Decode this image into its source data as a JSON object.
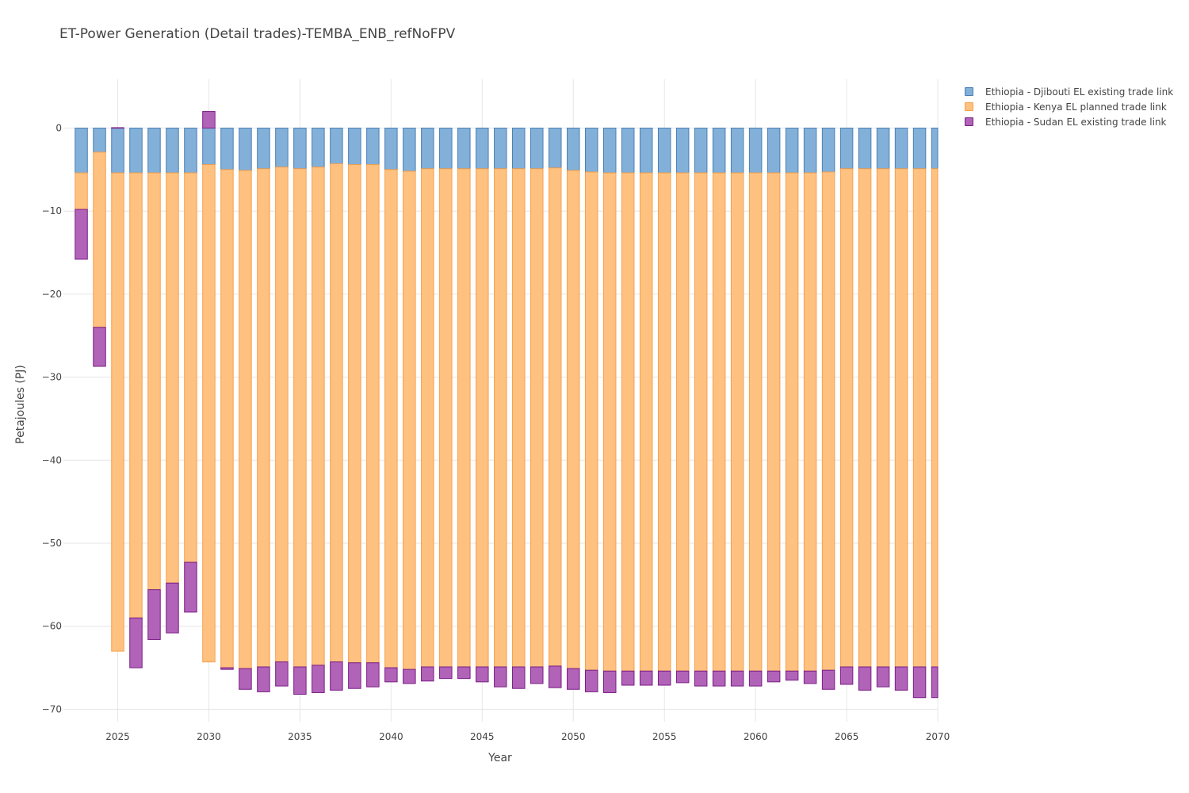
{
  "chart_data": {
    "type": "bar",
    "title": "ET-Power Generation (Detail trades)-TEMBA_ENB_refNoFPV",
    "xlabel": "Year",
    "ylabel": "Petajoules (PJ)",
    "barmode": "relative",
    "xlim": [
      2022.3,
      2070
    ],
    "ylim": [
      -72.5,
      6
    ],
    "xticks": [
      2025,
      2030,
      2035,
      2040,
      2045,
      2050,
      2055,
      2060,
      2065,
      2070
    ],
    "yticks": [
      0,
      -10,
      -20,
      -30,
      -40,
      -50,
      -60,
      -70
    ],
    "ytick_labels": [
      "0",
      "−10",
      "−20",
      "−30",
      "−40",
      "−50",
      "−60",
      "−70"
    ],
    "grid": true,
    "legend_position": "top-right",
    "x": [
      2023,
      2024,
      2025,
      2026,
      2027,
      2028,
      2029,
      2030,
      2031,
      2032,
      2033,
      2034,
      2035,
      2036,
      2037,
      2038,
      2039,
      2040,
      2041,
      2042,
      2043,
      2044,
      2045,
      2046,
      2047,
      2048,
      2049,
      2050,
      2051,
      2052,
      2053,
      2054,
      2055,
      2056,
      2057,
      2058,
      2059,
      2060,
      2061,
      2062,
      2063,
      2064,
      2065,
      2066,
      2067,
      2068,
      2069,
      2070
    ],
    "series": [
      {
        "name": "Ethiopia - Djibouti EL existing trade link",
        "color": "#83b0d8",
        "border": "#4a7fb5",
        "values": [
          -5.4,
          -2.9,
          -5.4,
          -5.4,
          -5.4,
          -5.4,
          -5.4,
          -4.4,
          -5.0,
          -5.1,
          -4.9,
          -4.7,
          -4.9,
          -4.7,
          -4.3,
          -4.4,
          -4.4,
          -5.0,
          -5.2,
          -4.9,
          -4.9,
          -4.9,
          -4.9,
          -4.9,
          -4.9,
          -4.9,
          -4.8,
          -5.1,
          -5.3,
          -5.4,
          -5.4,
          -5.4,
          -5.4,
          -5.4,
          -5.4,
          -5.4,
          -5.4,
          -5.4,
          -5.4,
          -5.4,
          -5.4,
          -5.3,
          -4.9,
          -4.9,
          -4.9,
          -4.9,
          -4.9,
          -4.9
        ]
      },
      {
        "name": "Ethiopia - Kenya EL planned trade link",
        "color": "#ffc180",
        "border": "#f5a14d",
        "values": [
          -4.4,
          -21.1,
          -57.6,
          -53.6,
          -50.2,
          -49.4,
          -46.9,
          -59.9,
          -60.0,
          -60.0,
          -60.0,
          -59.6,
          -60.0,
          -60.0,
          -60.0,
          -60.0,
          -60.0,
          -60.0,
          -60.0,
          -60.0,
          -60.0,
          -60.0,
          -60.0,
          -60.0,
          -60.0,
          -60.0,
          -60.0,
          -60.0,
          -60.0,
          -60.0,
          -60.0,
          -60.0,
          -60.0,
          -60.0,
          -60.0,
          -60.0,
          -60.0,
          -60.0,
          -60.0,
          -60.0,
          -60.0,
          -60.0,
          -60.0,
          -60.0,
          -60.0,
          -60.0,
          -60.0,
          -60.0
        ]
      },
      {
        "name": "Ethiopia - Sudan EL existing trade link",
        "color": "#b163b8",
        "border": "#7a1e86",
        "values": [
          -6.0,
          -4.7,
          0.05,
          -6.0,
          -6.0,
          -6.0,
          -6.0,
          2.0,
          -0.2,
          -2.5,
          -3.0,
          -2.9,
          -3.3,
          -3.3,
          -3.4,
          -3.1,
          -2.9,
          -1.7,
          -1.7,
          -1.7,
          -1.4,
          -1.4,
          -1.8,
          -2.4,
          -2.6,
          -2.0,
          -2.6,
          -2.5,
          -2.6,
          -2.6,
          -1.7,
          -1.7,
          -1.7,
          -1.4,
          -1.8,
          -1.8,
          -1.8,
          -1.8,
          -1.3,
          -1.1,
          -1.5,
          -2.3,
          -2.1,
          -2.8,
          -2.4,
          -2.8,
          -3.7,
          -3.7
        ]
      }
    ]
  }
}
